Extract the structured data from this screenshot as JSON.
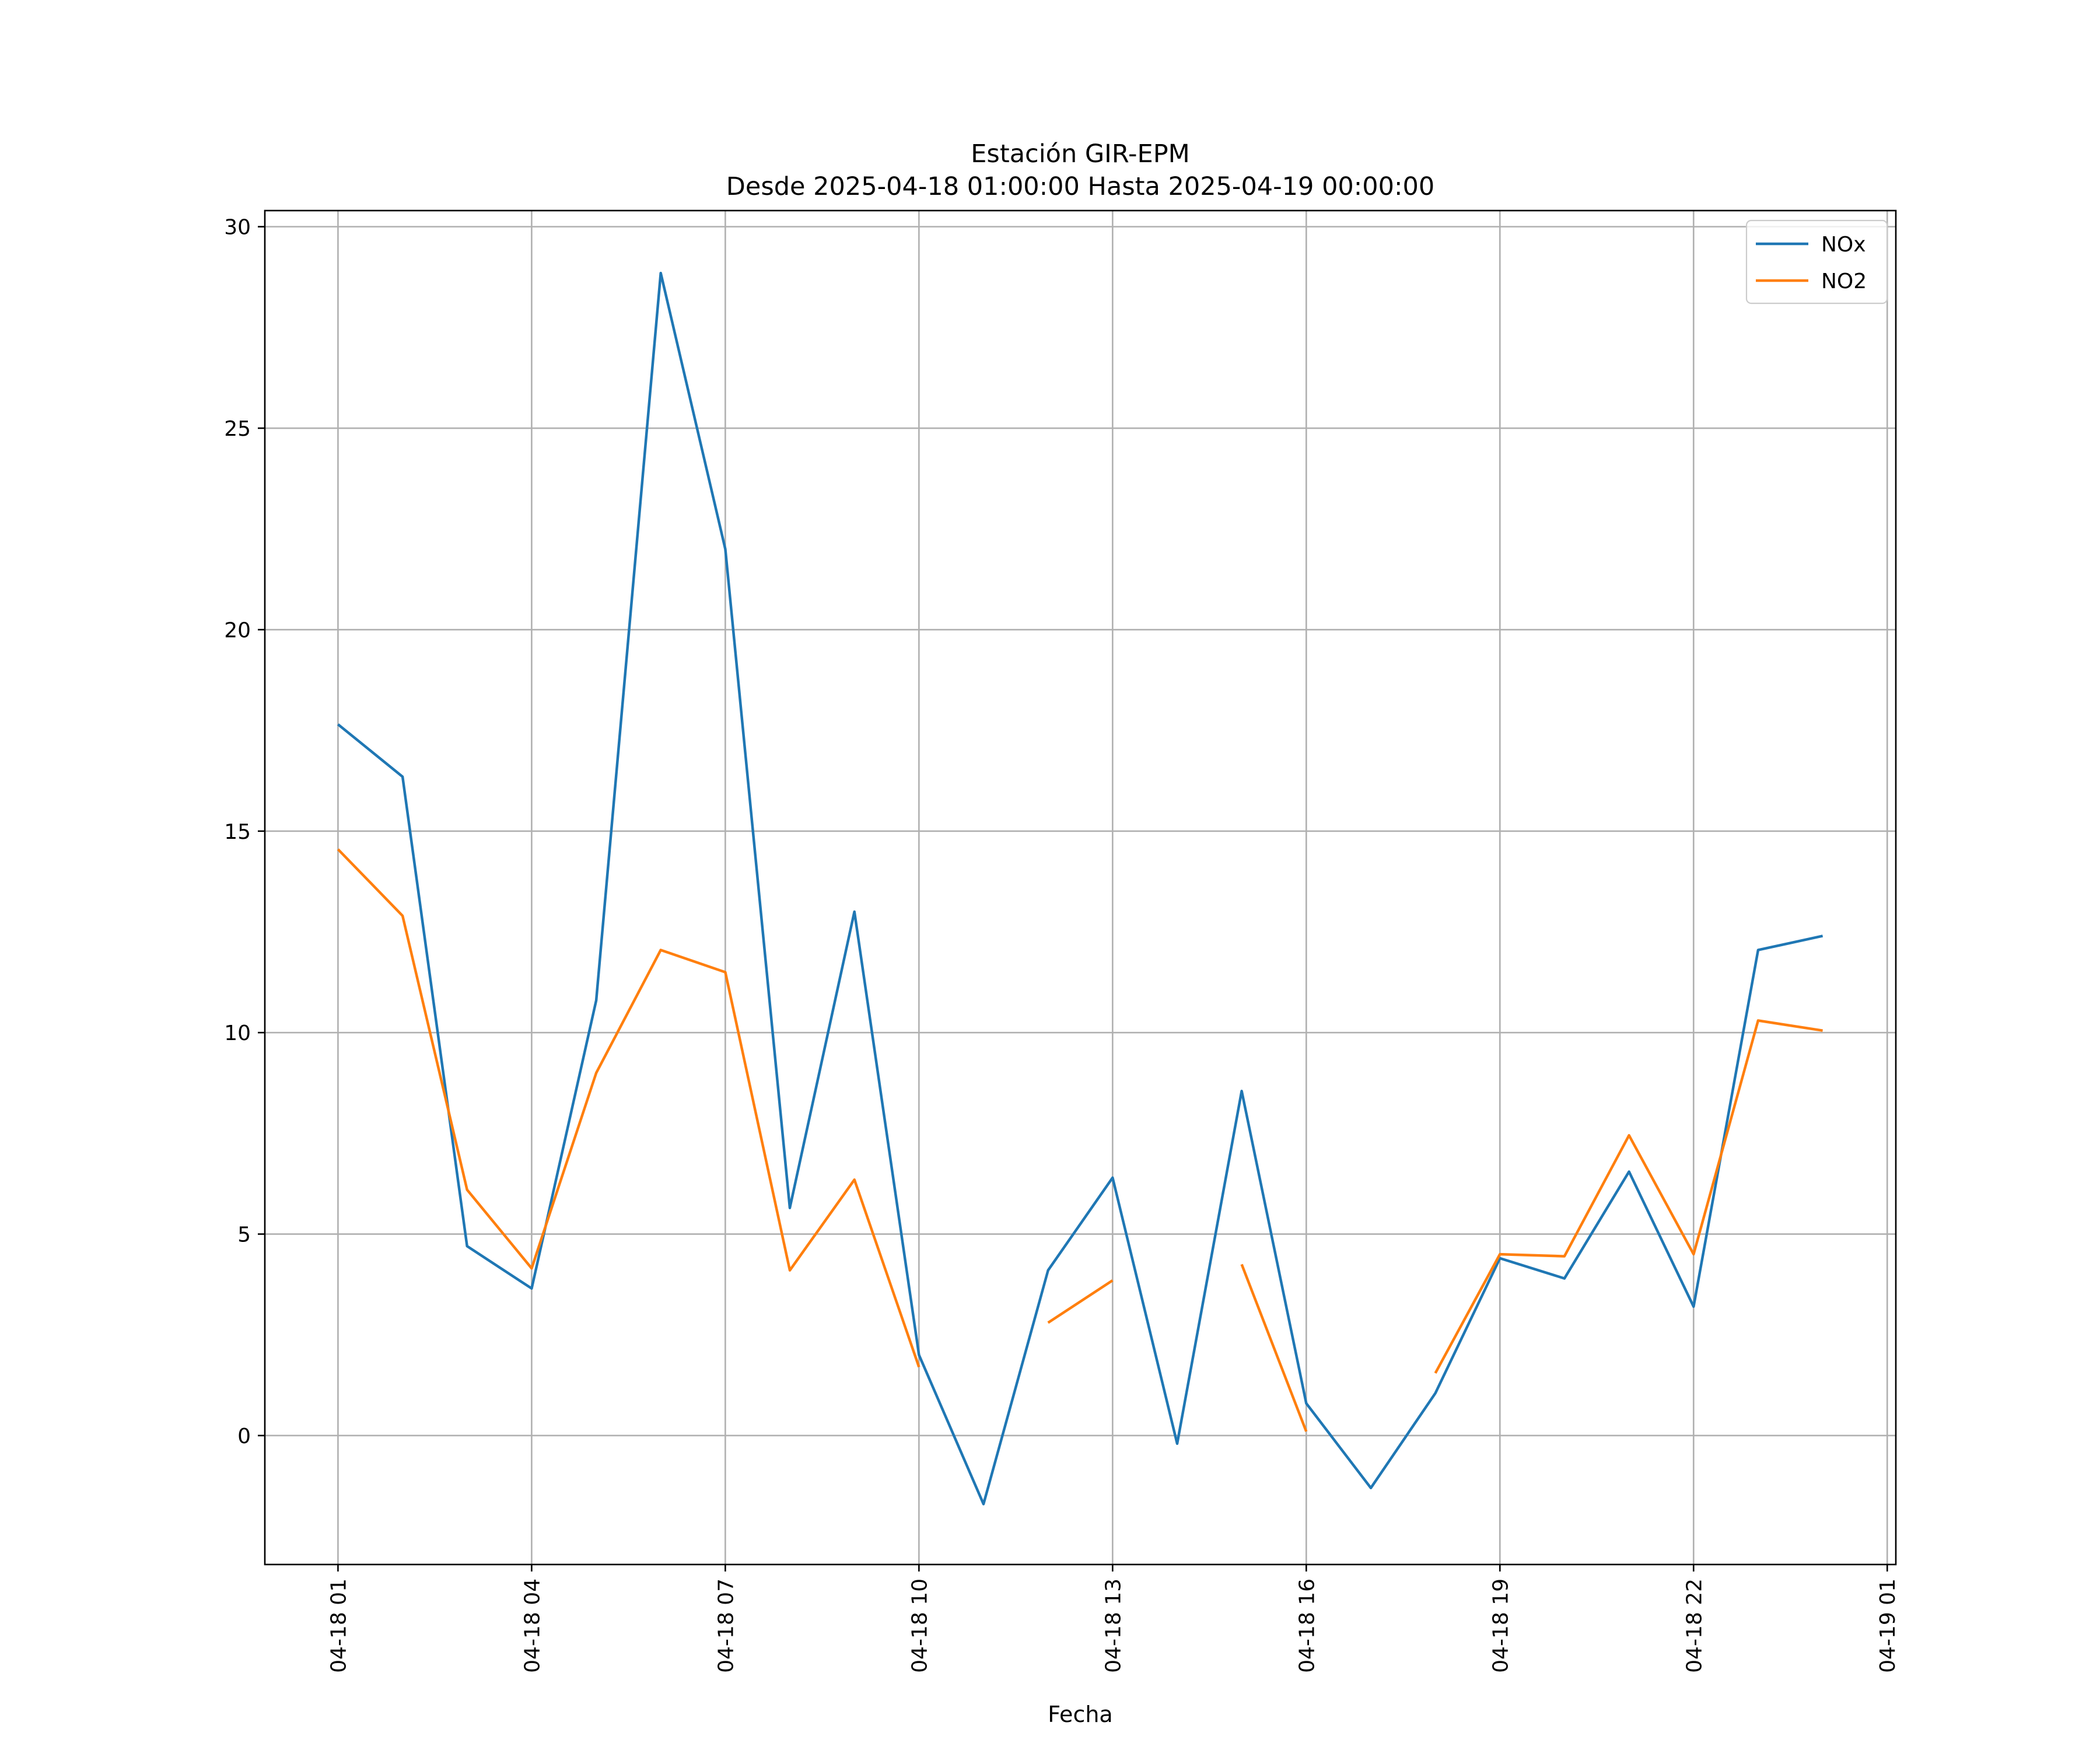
{
  "chart_data": {
    "type": "line",
    "title_line1": "Estación GIR-EPM",
    "title_line2": "Desde 2025-04-18 01:00:00 Hasta 2025-04-19 00:00:00",
    "xlabel": "Fecha",
    "ylabel": "",
    "ylim": [
      -3.2,
      30.4
    ],
    "xlim": [
      "2025-04-17 23:52",
      "2025-04-19 01:08"
    ],
    "grid": true,
    "legend_position": "top-right",
    "x": [
      "2025-04-18 01:00",
      "2025-04-18 02:00",
      "2025-04-18 03:00",
      "2025-04-18 04:00",
      "2025-04-18 05:00",
      "2025-04-18 06:00",
      "2025-04-18 07:00",
      "2025-04-18 08:00",
      "2025-04-18 09:00",
      "2025-04-18 10:00",
      "2025-04-18 11:00",
      "2025-04-18 12:00",
      "2025-04-18 13:00",
      "2025-04-18 14:00",
      "2025-04-18 15:00",
      "2025-04-18 16:00",
      "2025-04-18 17:00",
      "2025-04-18 18:00",
      "2025-04-18 19:00",
      "2025-04-18 20:00",
      "2025-04-18 21:00",
      "2025-04-18 22:00",
      "2025-04-18 23:00",
      "2025-04-19 00:00"
    ],
    "x_ticks": [
      {
        "x": "2025-04-18 01:00",
        "label": "04-18 01"
      },
      {
        "x": "2025-04-18 04:00",
        "label": "04-18 04"
      },
      {
        "x": "2025-04-18 07:00",
        "label": "04-18 07"
      },
      {
        "x": "2025-04-18 10:00",
        "label": "04-18 10"
      },
      {
        "x": "2025-04-18 13:00",
        "label": "04-18 13"
      },
      {
        "x": "2025-04-18 16:00",
        "label": "04-18 16"
      },
      {
        "x": "2025-04-18 19:00",
        "label": "04-18 19"
      },
      {
        "x": "2025-04-18 22:00",
        "label": "04-18 22"
      },
      {
        "x": "2025-04-19 01:00",
        "label": "04-19 01"
      }
    ],
    "y_ticks": [
      {
        "value": 0,
        "label": "0"
      },
      {
        "value": 5,
        "label": "5"
      },
      {
        "value": 10,
        "label": "10"
      },
      {
        "value": 15,
        "label": "15"
      },
      {
        "value": 20,
        "label": "20"
      },
      {
        "value": 25,
        "label": "25"
      },
      {
        "value": 30,
        "label": "30"
      }
    ],
    "series": [
      {
        "name": "NOx",
        "color": "#1f77b4",
        "values": [
          17.65,
          16.35,
          4.7,
          3.65,
          10.8,
          28.85,
          22.0,
          5.65,
          13.0,
          2.0,
          -1.7,
          4.1,
          6.4,
          -0.2,
          8.55,
          0.8,
          -1.3,
          1.05,
          4.4,
          3.9,
          6.55,
          3.2,
          12.05,
          12.4
        ]
      },
      {
        "name": "NO2",
        "color": "#ff7f0e",
        "values": [
          14.55,
          12.9,
          6.1,
          4.15,
          9.0,
          12.05,
          11.5,
          4.1,
          6.35,
          1.7,
          null,
          2.8,
          3.85,
          null,
          4.25,
          0.1,
          null,
          1.55,
          4.5,
          4.45,
          7.45,
          4.5,
          10.3,
          10.05
        ]
      }
    ]
  }
}
